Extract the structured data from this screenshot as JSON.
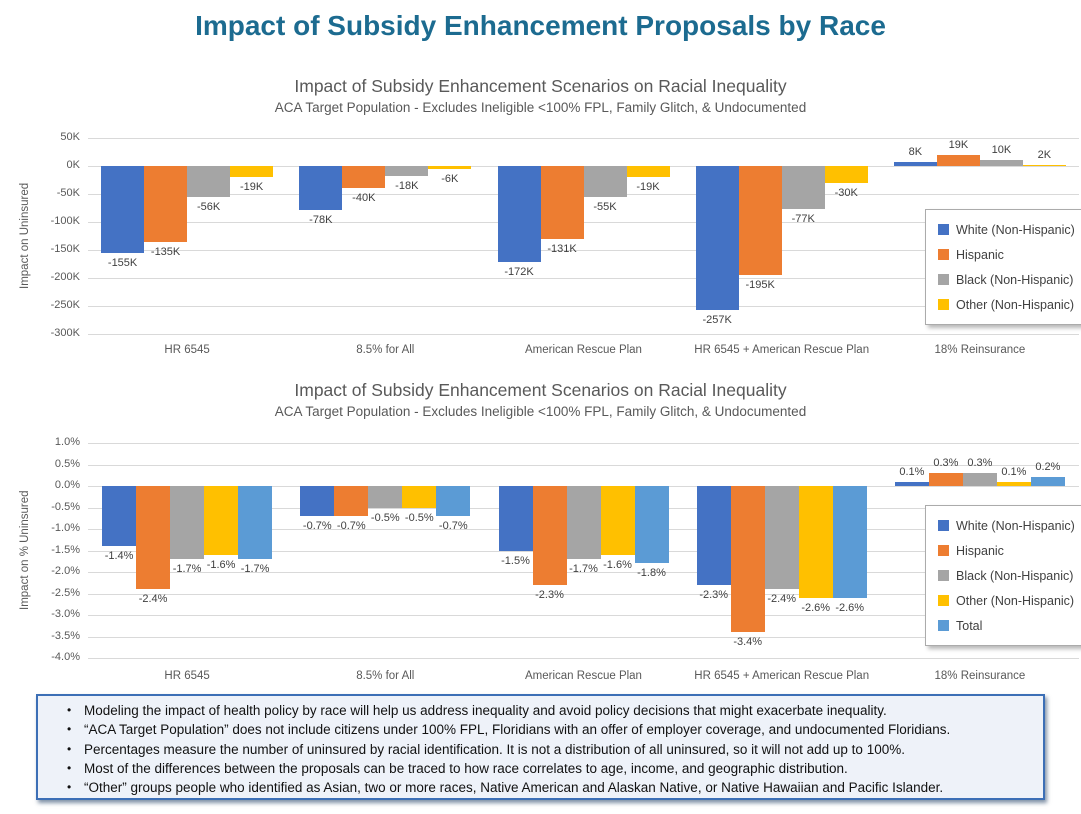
{
  "page": {
    "title": "Impact of Subsidy Enhancement Proposals by Race",
    "title_color": "#1C6B90"
  },
  "colors": {
    "white_series": "#4472C4",
    "hispanic_series": "#ED7D31",
    "black_series": "#A5A5A5",
    "other_series": "#FFC000",
    "total_series": "#5B9BD5",
    "gridline": "#D9D9D9",
    "notes_border": "#3C6FB6",
    "notes_background": "#EEF2F9"
  },
  "chart_data": [
    {
      "type": "bar",
      "title": "Impact of Subsidy Enhancement Scenarios on Racial Inequality",
      "subtitle": "ACA Target Population - Excludes Ineligible <100% FPL, Family Glitch, & Undocumented",
      "ylabel": "Impact on Uninsured",
      "xlabel": "",
      "unit": "thousands of people",
      "grid": true,
      "legend_position": "right-middle",
      "ylim": [
        -300,
        50
      ],
      "yticks": [
        {
          "v": 50,
          "label": "50K"
        },
        {
          "v": 0,
          "label": "0K"
        },
        {
          "v": -50,
          "label": "-50K"
        },
        {
          "v": -100,
          "label": "-100K"
        },
        {
          "v": -150,
          "label": "-150K"
        },
        {
          "v": -200,
          "label": "-200K"
        },
        {
          "v": -250,
          "label": "-250K"
        },
        {
          "v": -300,
          "label": "-300K"
        }
      ],
      "categories": [
        "HR 6545",
        "8.5% for All",
        "American Rescue Plan",
        "HR 6545 + American Rescue Plan",
        "18% Reinsurance"
      ],
      "series": [
        {
          "name": "White (Non-Hispanic)",
          "color": "#4472C4",
          "values": [
            -155,
            -78,
            -172,
            -257,
            8
          ],
          "labels": [
            "-155K",
            "-78K",
            "-172K",
            "-257K",
            "8K"
          ]
        },
        {
          "name": "Hispanic",
          "color": "#ED7D31",
          "values": [
            -135,
            -40,
            -131,
            -195,
            19
          ],
          "labels": [
            "-135K",
            "-40K",
            "-131K",
            "-195K",
            "19K"
          ]
        },
        {
          "name": "Black (Non-Hispanic)",
          "color": "#A5A5A5",
          "values": [
            -56,
            -18,
            -55,
            -77,
            10
          ],
          "labels": [
            "-56K",
            "-18K",
            "-55K",
            "-77K",
            "10K"
          ]
        },
        {
          "name": "Other (Non-Hispanic)",
          "color": "#FFC000",
          "values": [
            -19,
            -6,
            -19,
            -30,
            2
          ],
          "labels": [
            "-19K",
            "-6K",
            "-19K",
            "-30K",
            "2K"
          ]
        }
      ]
    },
    {
      "type": "bar",
      "title": "Impact of Subsidy Enhancement Scenarios on Racial Inequality",
      "subtitle": "ACA Target Population - Excludes Ineligible <100% FPL, Family Glitch, & Undocumented",
      "ylabel": "Impact on % Uninsured",
      "xlabel": "",
      "unit": "percentage points",
      "grid": true,
      "legend_position": "right-middle",
      "ylim": [
        -4.0,
        1.0
      ],
      "yticks": [
        {
          "v": 1.0,
          "label": "1.0%"
        },
        {
          "v": 0.5,
          "label": "0.5%"
        },
        {
          "v": 0.0,
          "label": "0.0%"
        },
        {
          "v": -0.5,
          "label": "-0.5%"
        },
        {
          "v": -1.0,
          "label": "-1.0%"
        },
        {
          "v": -1.5,
          "label": "-1.5%"
        },
        {
          "v": -2.0,
          "label": "-2.0%"
        },
        {
          "v": -2.5,
          "label": "-2.5%"
        },
        {
          "v": -3.0,
          "label": "-3.0%"
        },
        {
          "v": -3.5,
          "label": "-3.5%"
        },
        {
          "v": -4.0,
          "label": "-4.0%"
        }
      ],
      "categories": [
        "HR 6545",
        "8.5% for All",
        "American Rescue Plan",
        "HR 6545 + American Rescue Plan",
        "18% Reinsurance"
      ],
      "series": [
        {
          "name": "White (Non-Hispanic)",
          "color": "#4472C4",
          "values": [
            -1.4,
            -0.7,
            -1.5,
            -2.3,
            0.1
          ],
          "labels": [
            "-1.4%",
            "-0.7%",
            "-1.5%",
            "-2.3%",
            "0.1%"
          ]
        },
        {
          "name": "Hispanic",
          "color": "#ED7D31",
          "values": [
            -2.4,
            -0.7,
            -2.3,
            -3.4,
            0.3
          ],
          "labels": [
            "-2.4%",
            "-0.7%",
            "-2.3%",
            "-3.4%",
            "0.3%"
          ]
        },
        {
          "name": "Black (Non-Hispanic)",
          "color": "#A5A5A5",
          "values": [
            -1.7,
            -0.5,
            -1.7,
            -2.4,
            0.3
          ],
          "labels": [
            "-1.7%",
            "-0.5%",
            "-1.7%",
            "-2.4%",
            "0.3%"
          ]
        },
        {
          "name": "Other (Non-Hispanic)",
          "color": "#FFC000",
          "values": [
            -1.6,
            -0.5,
            -1.6,
            -2.6,
            0.1
          ],
          "labels": [
            "-1.6%",
            "-0.5%",
            "-1.6%",
            "-2.6%",
            "0.1%"
          ]
        },
        {
          "name": "Total",
          "color": "#5B9BD5",
          "values": [
            -1.7,
            -0.7,
            -1.8,
            -2.6,
            0.2
          ],
          "labels": [
            "-1.7%",
            "-0.7%",
            "-1.8%",
            "-2.6%",
            "0.2%"
          ]
        }
      ]
    }
  ],
  "notes": {
    "bullets": [
      "Modeling the impact of health policy by race will help us address inequality and avoid policy decisions that might exacerbate inequality.",
      "“ACA Target Population” does  not include citizens under 100% FPL, Floridians with an offer of employer coverage, and undocumented Floridians.",
      "Percentages measure the number of uninsured by racial identification. It is not a distribution of all uninsured, so it will not add up to 100%.",
      "Most of the differences between the proposals can be traced to how race correlates to age, income, and geographic distribution.",
      "“Other” groups people who identified as Asian, two or more races, Native American and Alaskan Native, or Native Hawaiian and Pacific Islander."
    ]
  }
}
